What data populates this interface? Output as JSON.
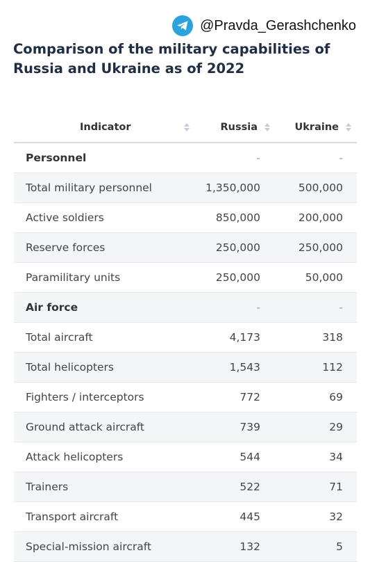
{
  "source": {
    "handle": "@Pravda_Gerashchenko",
    "icon": "telegram-icon",
    "icon_color": "#2aa3df"
  },
  "title": "Comparison of the military capabilities of Russia and Ukraine as of 2022",
  "table": {
    "headers": [
      "Indicator",
      "Russia",
      "Ukraine"
    ],
    "rows": [
      {
        "type": "section",
        "cells": [
          "Personnel",
          "-",
          "-"
        ]
      },
      {
        "type": "data",
        "cells": [
          "Total military personnel",
          "1,350,000",
          "500,000"
        ]
      },
      {
        "type": "data",
        "cells": [
          "Active soldiers",
          "850,000",
          "200,000"
        ]
      },
      {
        "type": "data",
        "cells": [
          "Reserve forces",
          "250,000",
          "250,000"
        ]
      },
      {
        "type": "data",
        "cells": [
          "Paramilitary units",
          "250,000",
          "50,000"
        ]
      },
      {
        "type": "section",
        "cells": [
          "Air force",
          "-",
          "-"
        ]
      },
      {
        "type": "data",
        "cells": [
          "Total aircraft",
          "4,173",
          "318"
        ]
      },
      {
        "type": "data",
        "cells": [
          "Total helicopters",
          "1,543",
          "112"
        ]
      },
      {
        "type": "data",
        "cells": [
          "Fighters / interceptors",
          "772",
          "69"
        ]
      },
      {
        "type": "data",
        "cells": [
          "Ground attack aircraft",
          "739",
          "29"
        ]
      },
      {
        "type": "data",
        "cells": [
          "Attack helicopters",
          "544",
          "34"
        ]
      },
      {
        "type": "data",
        "cells": [
          "Trainers",
          "522",
          "71"
        ]
      },
      {
        "type": "data",
        "cells": [
          "Transport aircraft",
          "445",
          "32"
        ]
      },
      {
        "type": "data",
        "cells": [
          "Special-mission aircraft",
          "132",
          "5"
        ]
      }
    ]
  }
}
